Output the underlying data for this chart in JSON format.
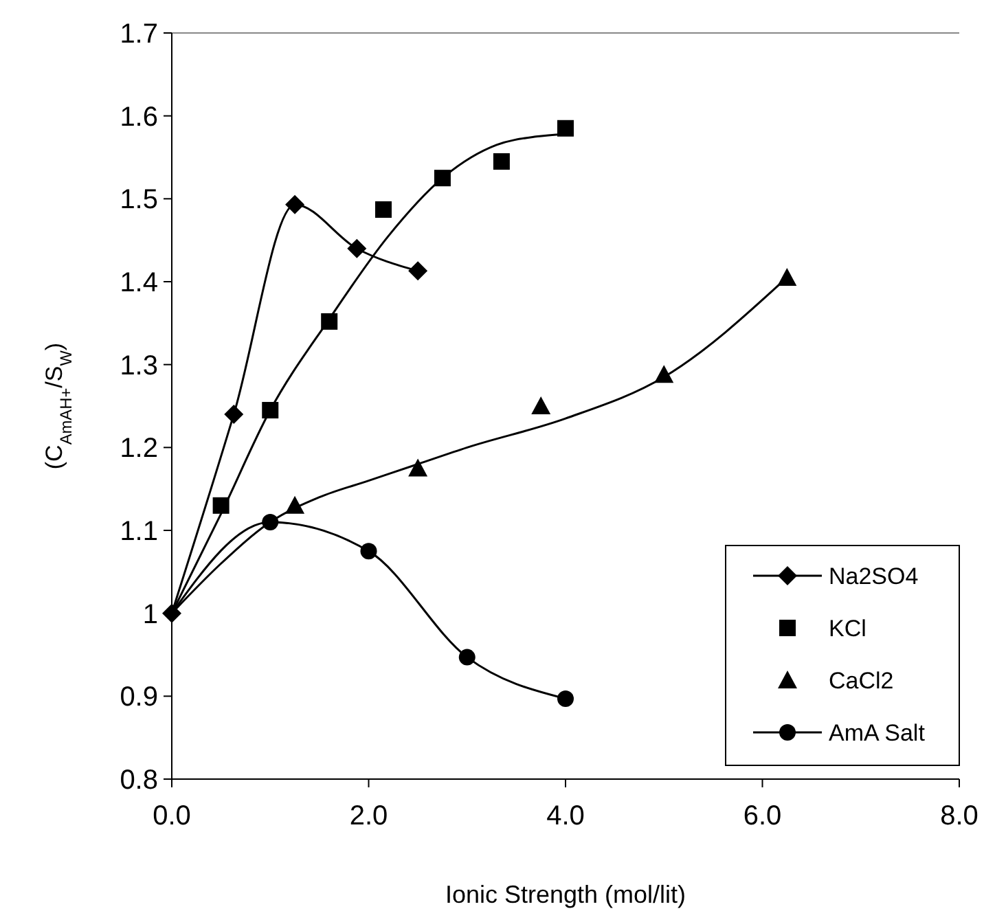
{
  "chart_data": {
    "type": "line",
    "xlabel": "Ionic Strength (mol/lit)",
    "ylabel": "(C$_{AmAH+}$/S$_{W}$)",
    "xlim": [
      0,
      8
    ],
    "xticks": [
      {
        "value": 0,
        "label": "0.0"
      },
      {
        "value": 2,
        "label": "2.0"
      },
      {
        "value": 4,
        "label": "4.0"
      },
      {
        "value": 6,
        "label": "6.0"
      },
      {
        "value": 8,
        "label": "8.0"
      }
    ],
    "ylim": [
      0.8,
      1.7
    ],
    "yticks": [
      0.8,
      0.9,
      1,
      1.1,
      1.2,
      1.3,
      1.4,
      1.5,
      1.6,
      1.7
    ],
    "grid": false,
    "legend": "bottom right",
    "series": [
      {
        "name": "Na2SO4",
        "type": "line",
        "marker": "diamond",
        "color": "#000000",
        "x": [
          0,
          0.63,
          1.25,
          1.88,
          2.5
        ],
        "values": [
          1,
          1.24,
          1.493,
          1.44,
          1.413
        ]
      },
      {
        "name": "KCl",
        "type": "scatter",
        "marker": "square",
        "color": "#000000",
        "x": [
          0.5,
          1,
          1.6,
          2.15,
          2.75,
          3.35,
          4
        ],
        "values": [
          1.13,
          1.245,
          1.352,
          1.487,
          1.525,
          1.545,
          1.585
        ]
      },
      {
        "name": "CaCl2",
        "type": "scatter",
        "marker": "triangle",
        "color": "#000000",
        "x": [
          1.25,
          2.5,
          3.75,
          5,
          6.25
        ],
        "values": [
          1.13,
          1.175,
          1.25,
          1.288,
          1.405
        ]
      },
      {
        "name": "AmA Salt",
        "type": "line",
        "marker": "circle",
        "color": "#000000",
        "x": [
          0,
          1,
          2,
          3,
          4
        ],
        "values": [
          1,
          1.11,
          1.075,
          0.947,
          0.897
        ]
      },
      {
        "marker": "none",
        "color": "#000000",
        "x": [
          0,
          0.5,
          1,
          1.6,
          2.2,
          2.75,
          3.3,
          3.7,
          4
        ],
        "values": [
          1,
          1.12,
          1.245,
          1.355,
          1.455,
          1.525,
          1.565,
          1.575,
          1.578
        ]
      },
      {
        "marker": "none",
        "color": "#000000",
        "x": [
          0,
          0.5,
          1,
          1.5,
          2,
          2.5,
          3,
          4,
          5,
          6.25
        ],
        "values": [
          1,
          1.06,
          1.11,
          1.14,
          1.16,
          1.18,
          1.2,
          1.235,
          1.285,
          1.405
        ]
      }
    ]
  }
}
